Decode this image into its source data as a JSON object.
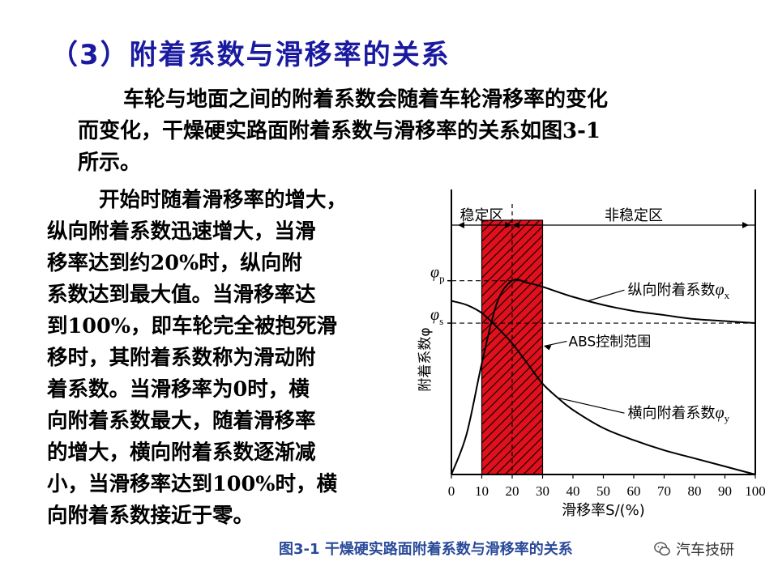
{
  "title": "（3）附着系数与滑移率的关系",
  "intro": [
    "车轮与地面之间的附着系数会随着车轮滑移率的变化",
    "而变化，干燥硬实路面附着系数与滑移率的关系如图3-1",
    "所示。"
  ],
  "body": [
    "开始时随着滑移率的增大，",
    "纵向附着系数迅速增大，当滑",
    "移率达到约20%时，纵向附",
    "系数达到最大值。当滑移率达",
    "到100%，即车轮完全被抱死滑",
    "移时，其附着系数称为滑动附",
    "着系数。当滑移率为0时，横",
    "向附着系数最大，随着滑移率",
    "的增大，横向附着系数逐渐减",
    "小，当滑移率达到100%时，横",
    "向附着系数接近于零。"
  ],
  "chart_data": {
    "type": "line",
    "x": [
      0,
      10,
      20,
      30,
      40,
      50,
      60,
      70,
      80,
      90,
      100
    ],
    "xlabel": "滑移率S/(%)",
    "ylabel": "附着系数φ",
    "ylim": [
      0,
      1.0
    ],
    "xlim": [
      0,
      100
    ],
    "y_tick_labels": [
      "φp",
      "φs"
    ],
    "y_tick_values": [
      0.96,
      0.75
    ],
    "regions": [
      {
        "label": "稳定区",
        "x_range": [
          0,
          20
        ]
      },
      {
        "label": "非稳定区",
        "x_range": [
          20,
          100
        ]
      }
    ],
    "shaded_band": {
      "label": "ABS控制范围",
      "x_range": [
        10,
        30
      ],
      "color": "#e0101c"
    },
    "series": [
      {
        "name": "纵向附着系数φx",
        "x": [
          0,
          5,
          10,
          15,
          20,
          25,
          30,
          40,
          50,
          60,
          70,
          80,
          90,
          100
        ],
        "values": [
          0.0,
          0.2,
          0.55,
          0.85,
          0.96,
          0.95,
          0.93,
          0.88,
          0.84,
          0.81,
          0.79,
          0.77,
          0.76,
          0.75
        ],
        "label_x": 58,
        "label_y": 0.89
      },
      {
        "name": "横向附着系数φy",
        "x": [
          0,
          5,
          10,
          15,
          20,
          25,
          30,
          35,
          40,
          50,
          60,
          70,
          80,
          90,
          100
        ],
        "values": [
          0.86,
          0.84,
          0.8,
          0.73,
          0.65,
          0.55,
          0.45,
          0.38,
          0.32,
          0.23,
          0.17,
          0.12,
          0.08,
          0.04,
          0.0
        ],
        "label_x": 58,
        "label_y": 0.28
      }
    ]
  },
  "caption": "图3-1  干燥硬实路面附着系数与滑移率的关系",
  "watermark": "汽车技研"
}
